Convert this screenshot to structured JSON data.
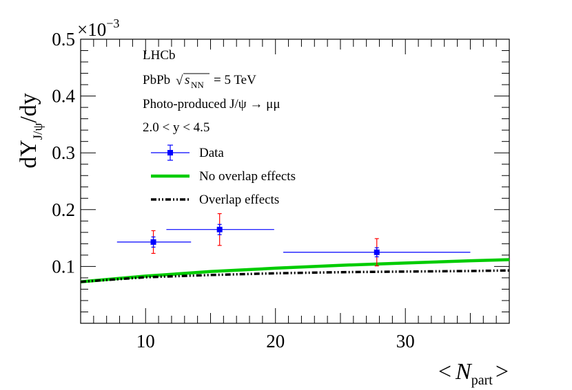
{
  "chart_data": {
    "type": "scatter",
    "title": "",
    "experiment": "LHCb",
    "system_prefix": "PbPb",
    "sqrt_symbol": "√",
    "sqrt_s_symbol": "s",
    "sqrt_s_sub": "NN",
    "energy_text": "= 5 TeV",
    "process": "Photo-produced J/ψ → μμ",
    "rapidity": "2.0 < y < 4.5",
    "ylabel": {
      "pre": "dY",
      "sub": "J/ψ",
      "post": "/dy"
    },
    "xlabel": {
      "left": "<",
      "var": "N",
      "sub": "part",
      "right": ">"
    },
    "y_multiplier": "×10",
    "y_multiplier_exp": "−3",
    "xlim": [
      5,
      38
    ],
    "ylim": [
      0,
      0.5
    ],
    "x_ticks": [
      10,
      20,
      30
    ],
    "x_tick_labels": [
      "10",
      "20",
      "30"
    ],
    "y_ticks": [
      0.1,
      0.2,
      0.3,
      0.4,
      0.5
    ],
    "y_tick_labels": [
      "0.1",
      "0.2",
      "0.3",
      "0.4",
      "0.5"
    ],
    "series": [
      {
        "name": "Data",
        "kind": "points",
        "color": "#0000ff",
        "syst_color": "#ff0000",
        "points": [
          {
            "x": 10.6,
            "y": 0.143,
            "xlow": 7.8,
            "xhigh": 13.5,
            "stat": 0.009,
            "syst": 0.02
          },
          {
            "x": 15.7,
            "y": 0.165,
            "xlow": 11.6,
            "xhigh": 19.9,
            "stat": 0.009,
            "syst": 0.028
          },
          {
            "x": 27.8,
            "y": 0.125,
            "xlow": 20.6,
            "xhigh": 35.0,
            "stat": 0.008,
            "syst": 0.024
          }
        ]
      },
      {
        "name": "No overlap effects",
        "kind": "line",
        "color": "#00cc00",
        "x": [
          5,
          10,
          15,
          20,
          25,
          30,
          35,
          38
        ],
        "y": [
          0.073,
          0.083,
          0.091,
          0.097,
          0.102,
          0.106,
          0.11,
          0.112
        ]
      },
      {
        "name": "Overlap effects",
        "kind": "line",
        "color": "#000000",
        "x": [
          5,
          10,
          15,
          20,
          25,
          30,
          35,
          38
        ],
        "y": [
          0.073,
          0.081,
          0.085,
          0.088,
          0.09,
          0.091,
          0.092,
          0.093
        ]
      }
    ]
  }
}
